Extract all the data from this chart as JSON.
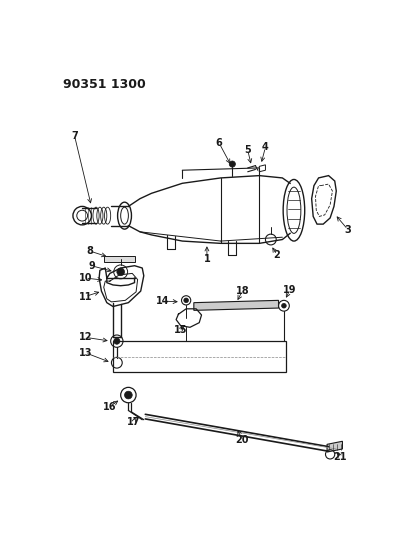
{
  "title": "90351 1300",
  "bg_color": "#ffffff",
  "fig_width": 4.03,
  "fig_height": 5.33,
  "dpi": 100,
  "line_color": "#1a1a1a",
  "label_fontsize": 7.0
}
